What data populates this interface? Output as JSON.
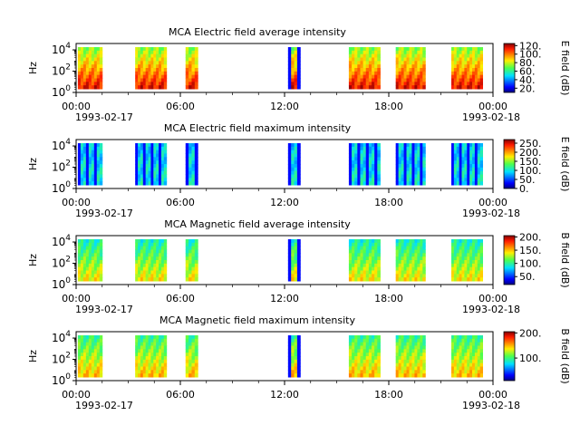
{
  "chart_data": [
    {
      "type": "heatmap",
      "title": "MCA  Electric field average intensity",
      "ylabel": "Hz",
      "y_scale": "log",
      "y_ticks": [
        {
          "base": "10",
          "exp": "0"
        },
        {
          "base": "10",
          "exp": "2"
        },
        {
          "base": "10",
          "exp": "4"
        }
      ],
      "x_ticks": [
        "00:00",
        "06:00",
        "12:00",
        "18:00",
        "00:00"
      ],
      "x_dates": {
        "start": "1993-02-17",
        "end": "1993-02-18"
      },
      "colorbar": {
        "label": "E field (dB)",
        "ticks": [
          "20.",
          "40.",
          "60.",
          "80.",
          "100.",
          "120."
        ],
        "range": [
          10,
          125
        ]
      },
      "levels": [
        0.55,
        0.75,
        0.9
      ],
      "data_windows": [
        [
          0.1,
          1.5,
          0.3
        ],
        [
          3.4,
          5.2,
          0.3
        ],
        [
          6.3,
          7.0,
          0.3
        ],
        [
          12.2,
          12.9,
          0.8
        ],
        [
          15.7,
          17.5,
          0.3
        ],
        [
          18.4,
          20.1,
          0.3
        ],
        [
          21.6,
          23.4,
          0.3
        ]
      ]
    },
    {
      "type": "heatmap",
      "title": "MCA  Electric field maximum intensity",
      "ylabel": "Hz",
      "y_scale": "log",
      "y_ticks": [
        {
          "base": "10",
          "exp": "0"
        },
        {
          "base": "10",
          "exp": "2"
        },
        {
          "base": "10",
          "exp": "4"
        }
      ],
      "x_ticks": [
        "00:00",
        "06:00",
        "12:00",
        "18:00",
        "00:00"
      ],
      "x_dates": {
        "start": "1993-02-17",
        "end": "1993-02-18"
      },
      "colorbar": {
        "label": "E field (dB)",
        "ticks": [
          "0.",
          "50.",
          "100.",
          "150.",
          "200.",
          "250."
        ],
        "range": [
          0,
          270
        ]
      },
      "levels": [
        0.33,
        0.35,
        0.37
      ],
      "data_windows": [
        [
          0.1,
          1.5,
          0.8
        ],
        [
          3.4,
          5.2,
          0.8
        ],
        [
          6.3,
          7.0,
          0.8
        ],
        [
          12.2,
          12.9,
          1.0
        ],
        [
          15.7,
          17.5,
          0.8
        ],
        [
          18.4,
          20.1,
          0.8
        ],
        [
          21.6,
          23.4,
          0.8
        ]
      ]
    },
    {
      "type": "heatmap",
      "title": "MCA  Magnetic field average intensity",
      "ylabel": "Hz",
      "y_scale": "log",
      "y_ticks": [
        {
          "base": "10",
          "exp": "0"
        },
        {
          "base": "10",
          "exp": "2"
        },
        {
          "base": "10",
          "exp": "4"
        }
      ],
      "x_ticks": [
        "00:00",
        "06:00",
        "12:00",
        "18:00",
        "00:00"
      ],
      "x_dates": {
        "start": "1993-02-17",
        "end": "1993-02-18"
      },
      "colorbar": {
        "label": "B field (dB)",
        "ticks": [
          "50.",
          "100.",
          "150.",
          "200."
        ],
        "range": [
          20,
          205
        ]
      },
      "levels": [
        0.4,
        0.5,
        0.65
      ],
      "data_windows": [
        [
          0.1,
          1.5,
          0.3
        ],
        [
          3.4,
          5.2,
          0.3
        ],
        [
          6.3,
          7.0,
          0.3
        ],
        [
          12.2,
          12.9,
          1.0
        ],
        [
          15.7,
          17.5,
          0.3
        ],
        [
          18.4,
          20.1,
          0.3
        ],
        [
          21.6,
          23.4,
          0.3
        ]
      ]
    },
    {
      "type": "heatmap",
      "title": "MCA  Magnetic field maximum intensity",
      "ylabel": "Hz",
      "y_scale": "log",
      "y_ticks": [
        {
          "base": "10",
          "exp": "0"
        },
        {
          "base": "10",
          "exp": "2"
        },
        {
          "base": "10",
          "exp": "4"
        }
      ],
      "x_ticks": [
        "00:00",
        "06:00",
        "12:00",
        "18:00",
        "00:00"
      ],
      "x_dates": {
        "start": "1993-02-17",
        "end": "1993-02-18"
      },
      "colorbar": {
        "label": "B field (dB)",
        "ticks": [
          "100.",
          "200."
        ],
        "range": [
          10,
          205
        ]
      },
      "levels": [
        0.45,
        0.55,
        0.7
      ],
      "data_windows": [
        [
          0.1,
          1.5,
          0.3
        ],
        [
          3.4,
          5.2,
          0.3
        ],
        [
          6.3,
          7.0,
          0.3
        ],
        [
          12.2,
          12.9,
          1.0
        ],
        [
          15.7,
          17.5,
          0.3
        ],
        [
          18.4,
          20.1,
          0.3
        ],
        [
          21.6,
          23.4,
          0.3
        ]
      ]
    }
  ]
}
